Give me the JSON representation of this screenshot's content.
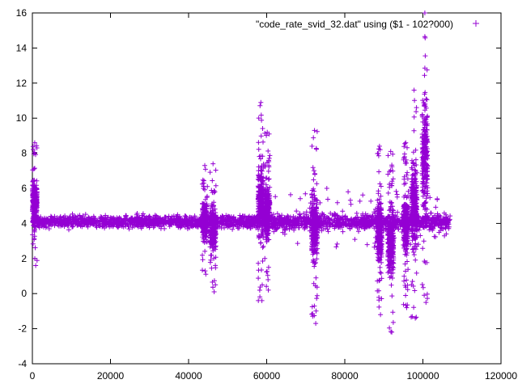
{
  "chart_data": {
    "type": "scatter",
    "xlim": [
      0,
      120000
    ],
    "ylim": [
      -4,
      16
    ],
    "xticks": [
      0,
      20000,
      40000,
      60000,
      80000,
      100000,
      120000
    ],
    "yticks": [
      -4,
      -2,
      0,
      2,
      4,
      6,
      8,
      10,
      12,
      14,
      16
    ],
    "grid": false,
    "legend_position": "top-right",
    "marker": "+",
    "series": [
      {
        "name": "\"code_rate_svid_32.dat\" using ($1 - 102?000)",
        "color": "#9400d3",
        "baseline": 4.1,
        "x_range": [
          0,
          107000
        ],
        "bursts": [
          {
            "x": [
              0,
              1200
            ],
            "y_range": [
              1.6,
              8.6
            ]
          },
          {
            "x": [
              43500,
              44800
            ],
            "y_range": [
              1.1,
              7.3
            ]
          },
          {
            "x": [
              45500,
              47000
            ],
            "y_range": [
              0.1,
              7.4
            ]
          },
          {
            "x": [
              57800,
              59200
            ],
            "y_range": [
              -0.4,
              10.9
            ]
          },
          {
            "x": [
              59500,
              60800
            ],
            "y_range": [
              0.2,
              9.2
            ]
          },
          {
            "x": [
              71500,
              73000
            ],
            "y_range": [
              -1.7,
              9.3
            ]
          },
          {
            "x": [
              88300,
              89500
            ],
            "y_range": [
              -1.2,
              8.4
            ]
          },
          {
            "x": [
              91000,
              92500
            ],
            "y_range": [
              -2.2,
              8.1
            ]
          },
          {
            "x": [
              95000,
              96200
            ],
            "y_range": [
              -0.8,
              8.6
            ]
          },
          {
            "x": [
              97000,
              98500
            ],
            "y_range": [
              -1.4,
              11.6
            ]
          },
          {
            "x": [
              99800,
              101200
            ],
            "y_range": [
              -0.5,
              16
            ]
          }
        ]
      }
    ]
  },
  "legend": {
    "label": "\"code_rate_svid_32.dat\" using ($1 - 102?000)"
  }
}
